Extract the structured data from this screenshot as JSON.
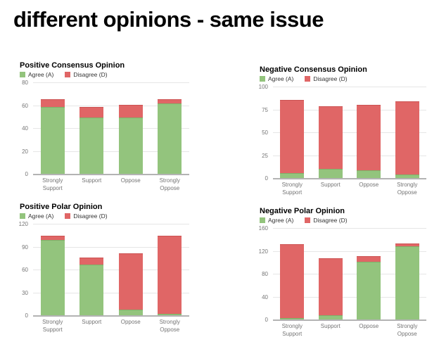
{
  "slide": {
    "title": "different opinions - same issue"
  },
  "colors": {
    "agree": "#93c47d",
    "agree_edge": "#7fb069",
    "disagree": "#e06666",
    "disagree_edge": "#cc5252",
    "gridline": "#e6e6e6",
    "axis": "#b3b3b3",
    "tick_text": "#757575"
  },
  "chart_data": [
    {
      "type": "bar",
      "stacked": true,
      "title": "Positive Consensus Opinion",
      "legend_position": "top",
      "categories": [
        "Strongly Support",
        "Support",
        "Oppose",
        "Strongly Oppose"
      ],
      "series": [
        {
          "name": "Agree (A)",
          "color": "#93c47d",
          "values": [
            59,
            50,
            50,
            62
          ]
        },
        {
          "name": "Disagree (D)",
          "color": "#e06666",
          "values": [
            7,
            9,
            11,
            4
          ]
        }
      ],
      "ylim": [
        0,
        80
      ],
      "yticks": [
        0,
        20,
        40,
        60,
        80
      ]
    },
    {
      "type": "bar",
      "stacked": true,
      "title": "Negative Consensus Opinion",
      "legend_position": "top",
      "categories": [
        "Strongly Support",
        "Support",
        "Oppose",
        "Strongly Oppose"
      ],
      "series": [
        {
          "name": "Agree (A)",
          "color": "#93c47d",
          "values": [
            6,
            11,
            9,
            5
          ]
        },
        {
          "name": "Disagree (D)",
          "color": "#e06666",
          "values": [
            80,
            68,
            72,
            80
          ]
        }
      ],
      "ylim": [
        0,
        100
      ],
      "yticks": [
        0,
        25,
        50,
        75,
        100
      ]
    },
    {
      "type": "bar",
      "stacked": true,
      "title": "Positive Polar Opinion",
      "legend_position": "top",
      "categories": [
        "Strongly Support",
        "Support",
        "Oppose",
        "Strongly Oppose"
      ],
      "series": [
        {
          "name": "Agree (A)",
          "color": "#93c47d",
          "values": [
            100,
            67,
            8,
            3
          ]
        },
        {
          "name": "Disagree (D)",
          "color": "#e06666",
          "values": [
            5,
            10,
            74,
            102
          ]
        }
      ],
      "ylim": [
        0,
        120
      ],
      "yticks": [
        0,
        30,
        60,
        90,
        120
      ]
    },
    {
      "type": "bar",
      "stacked": true,
      "title": "Negative Polar Opinion",
      "legend_position": "top",
      "categories": [
        "Strongly Support",
        "Support",
        "Oppose",
        "Strongly Oppose"
      ],
      "series": [
        {
          "name": "Agree (A)",
          "color": "#93c47d",
          "values": [
            4,
            9,
            102,
            129
          ]
        },
        {
          "name": "Disagree (D)",
          "color": "#e06666",
          "values": [
            129,
            99,
            10,
            5
          ]
        }
      ],
      "ylim": [
        0,
        160
      ],
      "yticks": [
        0,
        40,
        80,
        120,
        160
      ]
    }
  ]
}
